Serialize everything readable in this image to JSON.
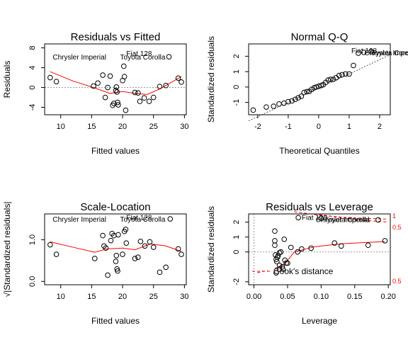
{
  "chart_data": [
    {
      "type": "scatter",
      "title": "Residuals vs Fitted",
      "xlabel": "Fitted values",
      "ylabel": "Residuals",
      "xlim": [
        7.4,
        30.3
      ],
      "ylim": [
        -5.5,
        8.8
      ],
      "xticks": [
        10,
        15,
        20,
        25,
        30
      ],
      "yticks": [
        -4,
        0,
        4,
        8
      ],
      "points": [
        [
          8.3,
          2.0
        ],
        [
          9.3,
          1.2
        ],
        [
          16.0,
          0.9
        ],
        [
          16.8,
          2.5
        ],
        [
          17.2,
          -2.0
        ],
        [
          17.6,
          0.0
        ],
        [
          18.0,
          2.3
        ],
        [
          18.4,
          -3.6
        ],
        [
          18.6,
          -3.2
        ],
        [
          18.9,
          -0.6
        ],
        [
          19.0,
          0.1
        ],
        [
          19.1,
          -0.9
        ],
        [
          19.3,
          -3.5
        ],
        [
          19.2,
          -3.0
        ],
        [
          20.0,
          1.4
        ],
        [
          20.3,
          2.2
        ],
        [
          20.5,
          -4.6
        ],
        [
          20.2,
          4.3
        ],
        [
          22.0,
          -1.0
        ],
        [
          22.5,
          -1.1
        ],
        [
          22.8,
          -2.8
        ],
        [
          23.5,
          -2.1
        ],
        [
          24.3,
          -2.8
        ],
        [
          25.0,
          -2.0
        ],
        [
          26.0,
          0.2
        ],
        [
          27.0,
          0.4
        ],
        [
          27.5,
          6.2
        ],
        [
          29.0,
          1.9
        ],
        [
          29.5,
          1.1
        ],
        [
          15.3,
          0.3
        ]
      ],
      "smooth": [
        [
          8.3,
          3.2
        ],
        [
          12,
          1.3
        ],
        [
          15.5,
          -0.1
        ],
        [
          18,
          -1.2
        ],
        [
          20,
          -0.8
        ],
        [
          22,
          -1.2
        ],
        [
          24,
          -1.4
        ],
        [
          26,
          -0.3
        ],
        [
          29.5,
          2.2
        ]
      ],
      "reference_line": 0,
      "labels": [
        {
          "text": "Chrysler Imperial",
          "x": 8.7,
          "y": 6.1
        },
        {
          "text": "Fiat 128",
          "x": 20.6,
          "y": 6.8
        },
        {
          "text": "Toyota Corolla",
          "x": 19.6,
          "y": 6.1
        }
      ]
    },
    {
      "type": "scatter",
      "title": "Normal Q-Q",
      "xlabel": "Theoretical Quantiles",
      "ylabel": "Standardized residuals",
      "xlim": [
        -2.3,
        2.35
      ],
      "ylim": [
        -1.8,
        2.8
      ],
      "xticks": [
        -2,
        -1,
        0,
        1,
        2
      ],
      "yticks": [
        -1,
        0,
        1,
        2
      ],
      "points": [
        [
          -2.15,
          -1.5
        ],
        [
          -1.72,
          -1.3
        ],
        [
          -1.48,
          -1.25
        ],
        [
          -1.3,
          -1.1
        ],
        [
          -1.14,
          -1.05
        ],
        [
          -1.0,
          -0.95
        ],
        [
          -0.88,
          -0.9
        ],
        [
          -0.77,
          -0.8
        ],
        [
          -0.67,
          -0.7
        ],
        [
          -0.57,
          -0.6
        ],
        [
          -0.48,
          -0.35
        ],
        [
          -0.39,
          -0.3
        ],
        [
          -0.31,
          -0.28
        ],
        [
          -0.23,
          -0.15
        ],
        [
          -0.15,
          -0.05
        ],
        [
          -0.08,
          0.0
        ],
        [
          0.0,
          0.05
        ],
        [
          0.08,
          0.1
        ],
        [
          0.15,
          0.15
        ],
        [
          0.23,
          0.3
        ],
        [
          0.31,
          0.45
        ],
        [
          0.39,
          0.5
        ],
        [
          0.48,
          0.5
        ],
        [
          0.57,
          0.6
        ],
        [
          0.67,
          0.75
        ],
        [
          0.77,
          0.8
        ],
        [
          0.88,
          0.85
        ],
        [
          1.0,
          0.85
        ],
        [
          1.14,
          1.4
        ],
        [
          1.3,
          2.2
        ],
        [
          1.48,
          2.25
        ],
        [
          1.72,
          2.3
        ]
      ],
      "qq_line": [
        [
          -2.3,
          -2.2
        ],
        [
          2.35,
          2.1
        ]
      ],
      "labels": [
        {
          "text": "Fiat 128",
          "x": 1.07,
          "y": 2.35
        },
        {
          "text": "Chrysler Imperial",
          "x": 1.5,
          "y": 2.2
        },
        {
          "text": "Toyota Corolla",
          "x": 1.72,
          "y": 2.2
        }
      ]
    },
    {
      "type": "scatter",
      "title": "Scale-Location",
      "xlabel": "Fitted values",
      "ylabel": "√|Standardized residuals|",
      "xlim": [
        7.4,
        30.3
      ],
      "ylim": [
        -0.08,
        1.62
      ],
      "xticks": [
        10,
        15,
        20,
        25,
        30
      ],
      "yticks": [
        0.0,
        1.0
      ],
      "yticklabels": [
        "0.0",
        "1.0"
      ],
      "points": [
        [
          8.3,
          0.88
        ],
        [
          9.3,
          0.65
        ],
        [
          15.5,
          0.55
        ],
        [
          16.8,
          1.1
        ],
        [
          17.0,
          0.85
        ],
        [
          17.3,
          0.8
        ],
        [
          17.6,
          0.15
        ],
        [
          18.1,
          0.98
        ],
        [
          18.3,
          1.15
        ],
        [
          18.6,
          1.1
        ],
        [
          18.9,
          0.48
        ],
        [
          19.0,
          0.62
        ],
        [
          19.1,
          0.3
        ],
        [
          19.2,
          0.25
        ],
        [
          19.3,
          1.12
        ],
        [
          20.0,
          0.65
        ],
        [
          20.3,
          1.2
        ],
        [
          20.5,
          1.25
        ],
        [
          20.6,
          0.92
        ],
        [
          22.0,
          0.55
        ],
        [
          22.5,
          0.58
        ],
        [
          22.9,
          0.96
        ],
        [
          23.6,
          0.85
        ],
        [
          24.4,
          0.95
        ],
        [
          25.0,
          0.82
        ],
        [
          26.0,
          0.22
        ],
        [
          27.0,
          0.34
        ],
        [
          27.7,
          1.5
        ],
        [
          29.0,
          0.78
        ],
        [
          29.5,
          0.65
        ]
      ],
      "smooth": [
        [
          8.3,
          0.95
        ],
        [
          12,
          0.82
        ],
        [
          15.5,
          0.7
        ],
        [
          17.5,
          0.78
        ],
        [
          20,
          0.8
        ],
        [
          22,
          0.76
        ],
        [
          24.5,
          0.9
        ],
        [
          27,
          0.85
        ],
        [
          29.5,
          0.72
        ]
      ],
      "labels": [
        {
          "text": "Chrysler Imperial",
          "x": 8.7,
          "y": 1.48
        },
        {
          "text": "Fiat 128",
          "x": 20.6,
          "y": 1.53
        },
        {
          "text": "Toyota Corolla",
          "x": 19.6,
          "y": 1.48
        }
      ]
    },
    {
      "type": "scatter",
      "title": "Residuals vs Leverage",
      "xlabel": "Leverage",
      "ylabel": "Standardized residuals",
      "xlim": [
        -0.008,
        0.203
      ],
      "ylim": [
        -2.2,
        2.55
      ],
      "xticks": [
        0.0,
        0.05,
        0.1,
        0.15,
        0.2
      ],
      "xticklabels": [
        "0.00",
        "0.05",
        "0.10",
        "0.15",
        "0.20"
      ],
      "yticks": [
        -2,
        0,
        1,
        2
      ],
      "points": [
        [
          0.031,
          1.4
        ],
        [
          0.031,
          0.75
        ],
        [
          0.031,
          0.45
        ],
        [
          0.032,
          -0.2
        ],
        [
          0.033,
          -0.5
        ],
        [
          0.033,
          -1.4
        ],
        [
          0.034,
          -0.65
        ],
        [
          0.035,
          -0.35
        ],
        [
          0.036,
          -0.25
        ],
        [
          0.038,
          -0.9
        ],
        [
          0.038,
          -1.15
        ],
        [
          0.038,
          -0.05
        ],
        [
          0.04,
          0.0
        ],
        [
          0.042,
          -1.0
        ],
        [
          0.043,
          -1.15
        ],
        [
          0.045,
          0.85
        ],
        [
          0.046,
          -0.55
        ],
        [
          0.048,
          -0.75
        ],
        [
          0.05,
          -0.75
        ],
        [
          0.055,
          0.3
        ],
        [
          0.065,
          0.0
        ],
        [
          0.071,
          0.2
        ],
        [
          0.085,
          0.25
        ],
        [
          0.12,
          0.6
        ],
        [
          0.13,
          0.4
        ],
        [
          0.17,
          0.45
        ],
        [
          0.195,
          0.75
        ],
        [
          0.066,
          2.3
        ],
        [
          0.1,
          2.25
        ],
        [
          0.185,
          2.15
        ]
      ],
      "smooth": [
        [
          0.031,
          -1.1
        ],
        [
          0.045,
          -0.85
        ],
        [
          0.06,
          0.0
        ],
        [
          0.09,
          0.35
        ],
        [
          0.13,
          0.55
        ],
        [
          0.195,
          0.7
        ]
      ],
      "cooks_distance_legend": "Cook's distance",
      "cooks_contours": [
        {
          "label": "1",
          "side": "upper"
        },
        {
          "label": "0.5",
          "side": "upper"
        },
        {
          "label": "0.5",
          "side": "lower"
        }
      ],
      "labels": [
        {
          "text": "Fiat 128",
          "x": 0.071,
          "y": 2.3
        },
        {
          "text": "Chrysler Imperial",
          "x": 0.092,
          "y": 2.15
        },
        {
          "text": "Toyota Corolla",
          "x": 0.105,
          "y": 2.15
        }
      ]
    }
  ],
  "colors": {
    "points": "#000000",
    "smooth": "#ff0000",
    "reference": "#999999",
    "cooks": "#ff0000"
  }
}
